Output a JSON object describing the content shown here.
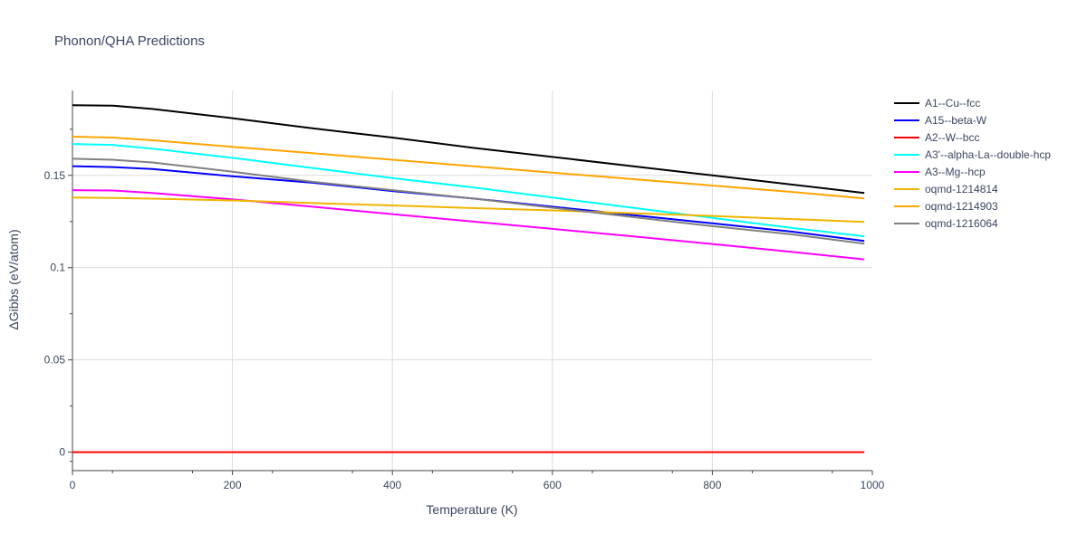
{
  "chart_data": {
    "type": "line",
    "title": "Phonon/QHA Predictions",
    "xlabel": "Temperature (K)",
    "ylabel": "ΔGibbs (eV/atom)",
    "xlim": [
      0,
      1000
    ],
    "ylim": [
      -0.01,
      0.196
    ],
    "x_ticks": [
      0,
      200,
      400,
      600,
      800,
      1000
    ],
    "y_ticks": [
      0,
      0.05,
      0.1,
      0.15
    ],
    "y_tick_labels": [
      "0",
      "0.05",
      "0.1",
      "0.15"
    ],
    "grid": true,
    "legend_position": "right",
    "series": [
      {
        "name": "A1--Cu--fcc",
        "color": "#000000",
        "x": [
          0,
          50,
          100,
          200,
          300,
          400,
          500,
          600,
          700,
          800,
          900,
          990
        ],
        "y": [
          0.188,
          0.1878,
          0.186,
          0.181,
          0.1755,
          0.1705,
          0.165,
          0.16,
          0.155,
          0.15,
          0.145,
          0.1405
        ]
      },
      {
        "name": "A15--beta-W",
        "color": "#0000ff",
        "x": [
          0,
          50,
          100,
          200,
          300,
          400,
          500,
          600,
          700,
          800,
          900,
          990
        ],
        "y": [
          0.155,
          0.1545,
          0.1535,
          0.1495,
          0.146,
          0.1415,
          0.1375,
          0.133,
          0.1285,
          0.124,
          0.1195,
          0.1145
        ]
      },
      {
        "name": "A2--W--bcc",
        "color": "#ff0000",
        "x": [
          0,
          990
        ],
        "y": [
          0,
          0
        ]
      },
      {
        "name": "A3'--alpha-La--double-hcp",
        "color": "#00ffff",
        "x": [
          0,
          50,
          100,
          200,
          300,
          400,
          500,
          600,
          700,
          800,
          900,
          990
        ],
        "y": [
          0.167,
          0.1665,
          0.1645,
          0.1595,
          0.154,
          0.1485,
          0.1435,
          0.138,
          0.1325,
          0.127,
          0.1215,
          0.117
        ]
      },
      {
        "name": "A3--Mg--hcp",
        "color": "#ff00ff",
        "x": [
          0,
          50,
          100,
          200,
          300,
          400,
          500,
          600,
          700,
          800,
          900,
          990
        ],
        "y": [
          0.142,
          0.1418,
          0.1405,
          0.137,
          0.133,
          0.129,
          0.125,
          0.121,
          0.117,
          0.1128,
          0.1085,
          0.1045
        ]
      },
      {
        "name": "oqmd-1214814",
        "color": "#f0b400",
        "x": [
          0,
          50,
          100,
          200,
          300,
          400,
          500,
          600,
          700,
          800,
          900,
          990
        ],
        "y": [
          0.138,
          0.1378,
          0.1374,
          0.1364,
          0.135,
          0.1337,
          0.1323,
          0.131,
          0.1295,
          0.128,
          0.1263,
          0.1248
        ]
      },
      {
        "name": "oqmd-1214903",
        "color": "#ffa500",
        "x": [
          0,
          50,
          100,
          200,
          300,
          400,
          500,
          600,
          700,
          800,
          900,
          990
        ],
        "y": [
          0.171,
          0.1705,
          0.169,
          0.1655,
          0.162,
          0.1585,
          0.155,
          0.1515,
          0.148,
          0.1445,
          0.141,
          0.1375
        ]
      },
      {
        "name": "oqmd-1216064",
        "color": "#808080",
        "x": [
          0,
          50,
          100,
          200,
          300,
          400,
          500,
          600,
          700,
          800,
          900,
          990
        ],
        "y": [
          0.159,
          0.1585,
          0.157,
          0.152,
          0.1465,
          0.142,
          0.1375,
          0.1325,
          0.1275,
          0.1225,
          0.118,
          0.113
        ]
      }
    ]
  }
}
